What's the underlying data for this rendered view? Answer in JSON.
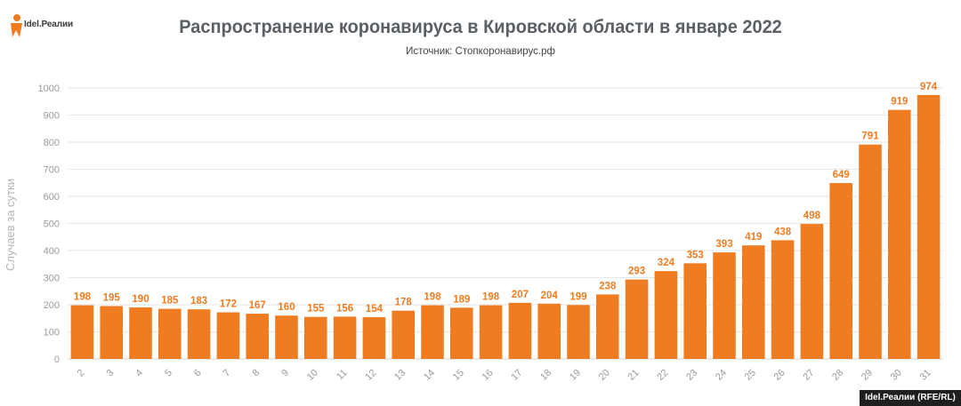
{
  "brand": {
    "logo_text": "Idel.Реалии",
    "footer_credit": "Idel.Реалии (RFE/RL)"
  },
  "colors": {
    "bar": "#F07C22",
    "label": "#F07C22",
    "grid": "#e6e6e6",
    "axis_text": "#9a9a9a"
  },
  "chart_data": {
    "type": "bar",
    "title": "Распространение коронавируса в Кировской области в январе 2022",
    "subtitle": "Источник: Стопкоронавирус.рф",
    "ylabel": "Случаев за сутки",
    "xlabel": "",
    "ylim": [
      0,
      1000
    ],
    "yticks": [
      0,
      100,
      200,
      300,
      400,
      500,
      600,
      700,
      800,
      900,
      1000
    ],
    "grid": true,
    "categories": [
      "2",
      "3",
      "4",
      "5",
      "6",
      "7",
      "8",
      "9",
      "10",
      "11",
      "12",
      "13",
      "14",
      "15",
      "16",
      "17",
      "18",
      "19",
      "20",
      "21",
      "22",
      "23",
      "24",
      "25",
      "26",
      "27",
      "28",
      "29",
      "30",
      "31"
    ],
    "values": [
      198,
      195,
      190,
      185,
      183,
      172,
      167,
      160,
      155,
      156,
      154,
      178,
      198,
      189,
      198,
      207,
      204,
      199,
      238,
      293,
      324,
      353,
      393,
      419,
      438,
      498,
      649,
      791,
      919,
      974
    ]
  }
}
